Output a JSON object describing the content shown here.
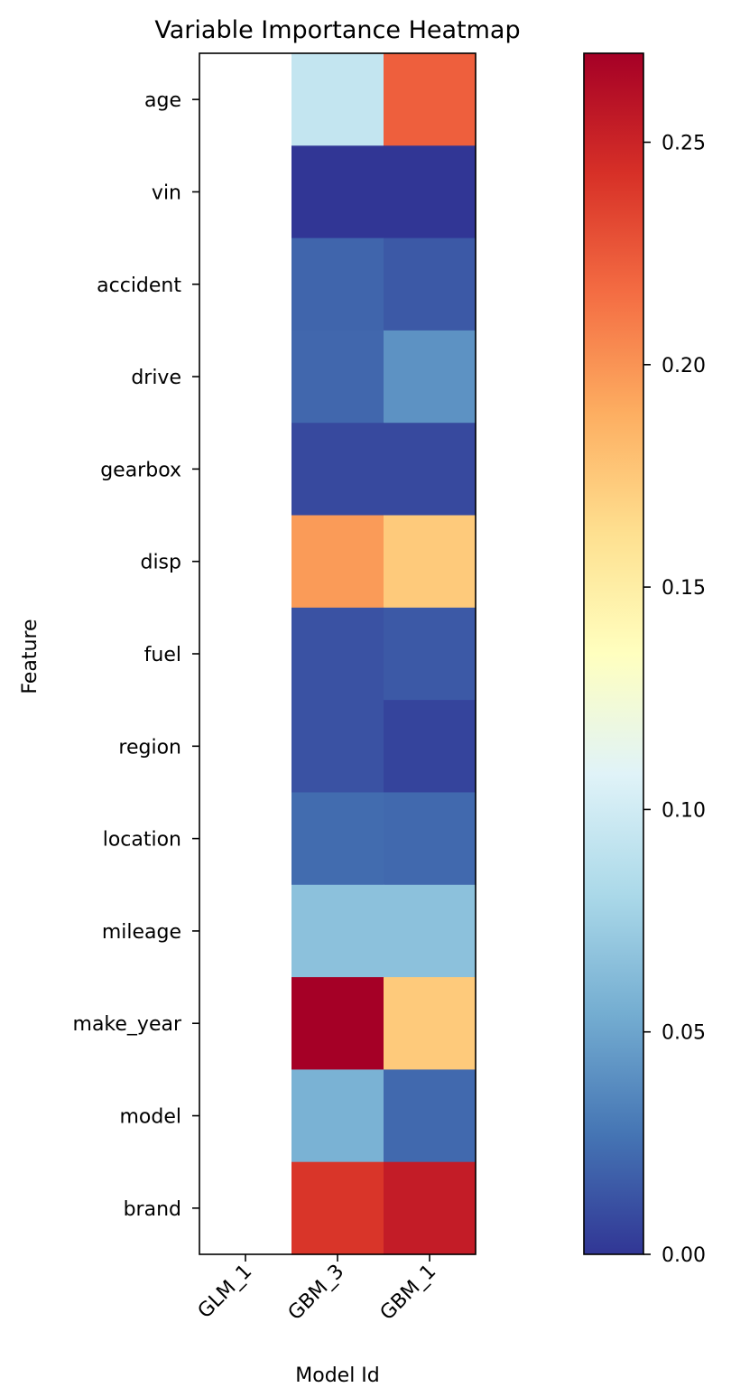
{
  "chart_data": {
    "type": "heatmap",
    "title": "Variable Importance Heatmap",
    "xlabel": "Model Id",
    "ylabel": "Feature",
    "x": [
      "GLM_1",
      "GBM_3",
      "GBM_1"
    ],
    "y": [
      "age",
      "vin",
      "accident",
      "drive",
      "gearbox",
      "disp",
      "fuel",
      "region",
      "location",
      "mileage",
      "make_year",
      "model",
      "brand"
    ],
    "values": [
      [
        null,
        0.093,
        0.222
      ],
      [
        null,
        0.0,
        0.0
      ],
      [
        null,
        0.02,
        0.015
      ],
      [
        null,
        0.021,
        0.041
      ],
      [
        null,
        0.008,
        0.008
      ],
      [
        null,
        0.197,
        0.174
      ],
      [
        null,
        0.012,
        0.015
      ],
      [
        null,
        0.012,
        0.006
      ],
      [
        null,
        0.023,
        0.022
      ],
      [
        null,
        0.066,
        0.066
      ],
      [
        null,
        0.27,
        0.174
      ],
      [
        null,
        0.057,
        0.022
      ],
      [
        null,
        0.241,
        0.254
      ]
    ],
    "colorbar": {
      "range": [
        0,
        0.27
      ],
      "ticks": [
        0.0,
        0.05,
        0.1,
        0.15,
        0.2,
        0.25
      ],
      "tick_labels": [
        "0.00",
        "0.05",
        "0.10",
        "0.15",
        "0.20",
        "0.25"
      ],
      "colormap": "RdYlBu_r",
      "stops": [
        "#313695",
        "#4575b4",
        "#74add1",
        "#abd9e9",
        "#e0f3f8",
        "#ffffbf",
        "#fee090",
        "#fdae61",
        "#f46d43",
        "#d73027",
        "#a50026"
      ]
    },
    "grid": false,
    "legend": "colorbar-right"
  }
}
